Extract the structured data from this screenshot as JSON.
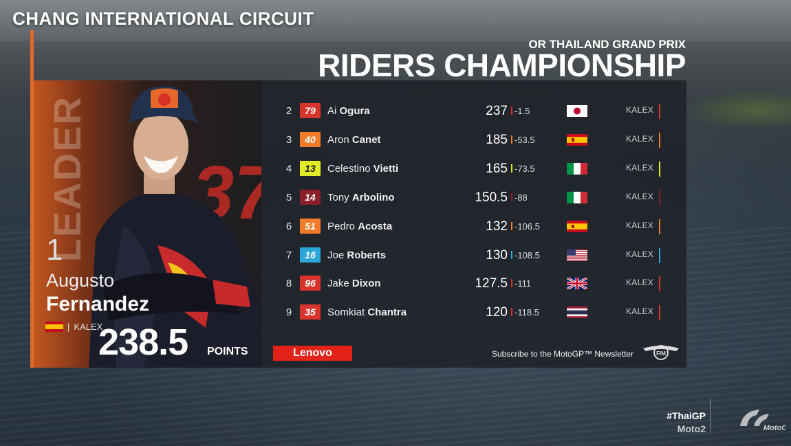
{
  "header": {
    "circuit": "CHANG INTERNATIONAL CIRCUIT",
    "grand_prix": "OR THAILAND GRAND PRIX",
    "title": "RIDERS CHAMPIONSHIP"
  },
  "leader": {
    "label": "LEADER",
    "position": "1",
    "first_name": "Augusto",
    "last_name": "Fernandez",
    "team": "KALEX",
    "team_separator": "|",
    "points": "238.5",
    "points_label": "POINTS",
    "bike_number": "37",
    "flag": "spain-flag"
  },
  "standings": [
    {
      "pos": "2",
      "number": "79",
      "first": "Ai",
      "last": "Ogura",
      "points": "237",
      "gap": "-1.5",
      "flag": "japan",
      "team": "KALEX",
      "color": "#d7352b",
      "text_color": "#ffffff"
    },
    {
      "pos": "3",
      "number": "40",
      "first": "Aron",
      "last": "Canet",
      "points": "185",
      "gap": "-53.5",
      "flag": "spain",
      "team": "KALEX",
      "color": "#ef7b2b",
      "text_color": "#ffffff"
    },
    {
      "pos": "4",
      "number": "13",
      "first": "Celestino",
      "last": "Vietti",
      "points": "165",
      "gap": "-73.5",
      "flag": "italy",
      "team": "KALEX",
      "color": "#e2ec27",
      "text_color": "#1a1a1a"
    },
    {
      "pos": "5",
      "number": "14",
      "first": "Tony",
      "last": "Arbolino",
      "points": "150.5",
      "gap": "-88",
      "flag": "italy",
      "team": "KALEX",
      "color": "#8a1f2a",
      "text_color": "#ffffff"
    },
    {
      "pos": "6",
      "number": "51",
      "first": "Pedro",
      "last": "Acosta",
      "points": "132",
      "gap": "-106.5",
      "flag": "spain",
      "team": "KALEX",
      "color": "#ef7b2b",
      "text_color": "#ffffff"
    },
    {
      "pos": "7",
      "number": "16",
      "first": "Joe",
      "last": "Roberts",
      "points": "130",
      "gap": "-108.5",
      "flag": "usa",
      "team": "KALEX",
      "color": "#2ba6d9",
      "text_color": "#ffffff"
    },
    {
      "pos": "8",
      "number": "96",
      "first": "Jake",
      "last": "Dixon",
      "points": "127.5",
      "gap": "-111",
      "flag": "uk",
      "team": "KALEX",
      "color": "#d7352b",
      "text_color": "#ffffff"
    },
    {
      "pos": "9",
      "number": "35",
      "first": "Somkiat",
      "last": "Chantra",
      "points": "120",
      "gap": "-118.5",
      "flag": "thailand",
      "team": "KALEX",
      "color": "#d7352b",
      "text_color": "#ffffff"
    }
  ],
  "footer": {
    "sponsor": "Lenovo",
    "newsletter": "Subscribe to the MotoGP™ Newsletter",
    "fim": "FIM",
    "hashtag": "#ThaiGP",
    "category": "Moto2",
    "motogp": "MotoGP"
  }
}
